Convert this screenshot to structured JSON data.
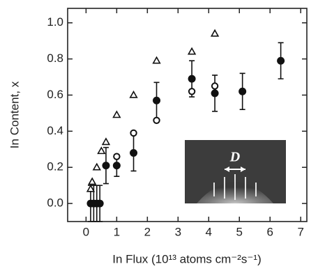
{
  "chart_data": {
    "type": "scatter",
    "x_label": "In Flux (10¹³ atoms cm⁻²s⁻¹)",
    "y_label": "In Content, x",
    "inset_label": "D",
    "xlim": [
      -0.6,
      7.2
    ],
    "xticks": [
      0,
      1,
      2,
      3,
      4,
      5,
      6,
      7
    ],
    "ylim": [
      -0.1,
      1.08
    ],
    "yticks": [
      {
        "value": 0,
        "label": "0.0"
      },
      0.2,
      0.4,
      0.6,
      0.8,
      {
        "value": 1,
        "label": "1.0"
      }
    ],
    "series": [
      {
        "marker": "filled-circle",
        "color": "#111",
        "x": [
          0.15,
          0.25,
          0.35,
          0.45,
          0.65,
          1.0,
          1.55,
          2.3,
          3.45,
          4.2,
          5.1,
          6.35
        ],
        "values": [
          0,
          0,
          0,
          0,
          0.21,
          0.21,
          0.28,
          0.57,
          0.69,
          0.61,
          0.62,
          0.79
        ],
        "errors": [
          0.1,
          0.1,
          0.1,
          0.1,
          0.1,
          0.06,
          0.1,
          0.1,
          0.1,
          0.1,
          0.1,
          0.1
        ]
      },
      {
        "marker": "open-circle",
        "color": "#111",
        "x": [
          1.0,
          1.55,
          2.3,
          3.45,
          4.2
        ],
        "values": [
          0.26,
          0.39,
          0.46,
          0.62,
          0.65
        ]
      },
      {
        "marker": "open-triangle",
        "color": "#111",
        "x": [
          0.15,
          0.2,
          0.35,
          0.5,
          0.65,
          1.0,
          1.55,
          2.3,
          3.45,
          4.2
        ],
        "values": [
          0.08,
          0.12,
          0.2,
          0.29,
          0.34,
          0.49,
          0.6,
          0.79,
          0.84,
          0.94
        ]
      }
    ]
  }
}
